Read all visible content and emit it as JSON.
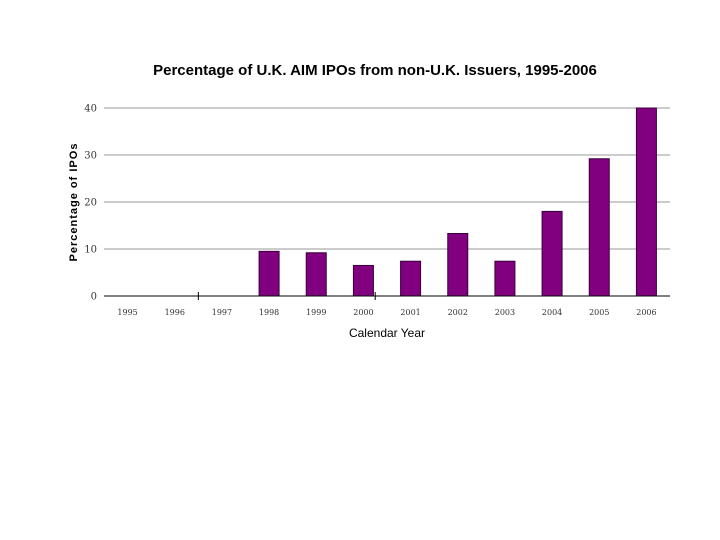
{
  "chart_data": {
    "type": "bar",
    "title": "Percentage of U.K. AIM IPOs from non-U.K. Issuers, 1995-2006",
    "xlabel": "Calendar Year",
    "ylabel": "Percentage  of  IPOs",
    "categories": [
      "1995",
      "1996",
      "1997",
      "1998",
      "1999",
      "2000",
      "2001",
      "2002",
      "2003",
      "2004",
      "2005",
      "2006"
    ],
    "values": [
      0,
      0,
      0,
      9.5,
      9.2,
      6.5,
      7.4,
      13.3,
      7.4,
      18,
      29.2,
      40
    ],
    "ylim": [
      0,
      40
    ],
    "yticks": [
      0,
      10,
      20,
      30,
      40
    ],
    "grid": true,
    "legend": "none",
    "bar_color": "#800080",
    "bar_edge_color": "#3a003a",
    "grid_color": "#999999"
  }
}
